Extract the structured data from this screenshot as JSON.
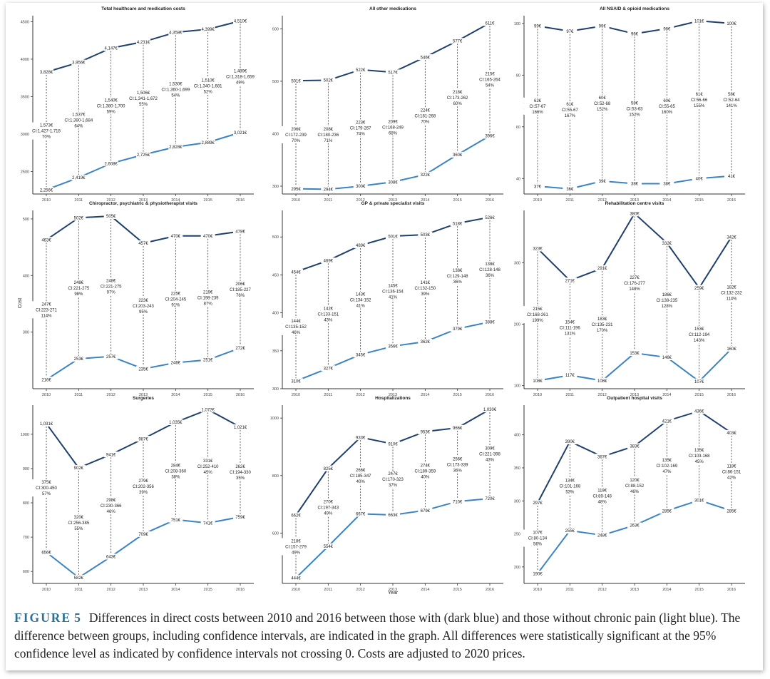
{
  "figure": {
    "label": "FIGURE",
    "number": "5",
    "caption": "Differences in direct costs between 2010 and 2016 between those with (dark blue) and those without chronic pain (light blue). The difference between groups, including confidence intervals, are indicated in the graph. All differences were statistically significant at the 95% confidence level as indicated by confidence intervals not crossing 0. Costs are adjusted to 2020 prices.",
    "y_axis_label": "Cost",
    "x_axis_label": "Year"
  },
  "colors": {
    "chronic": "#1f3f6e",
    "no_chronic": "#3a84c2",
    "axis": "#333333",
    "diff_line": "#333333"
  },
  "chart_data": [
    {
      "type": "line",
      "title": "Total healthcare and medication costs",
      "x": [
        "2010",
        "2011",
        "2012",
        "2013",
        "2014",
        "2015",
        "2016"
      ],
      "yticks": [
        2500,
        3000,
        3500,
        4000,
        4500
      ],
      "ylim": [
        2200,
        4580
      ],
      "series": [
        {
          "name": "With chronic pain",
          "values": [
            3828,
            3956,
            4147,
            4231,
            4358,
            4399,
            4510
          ],
          "labels": [
            "3,828€",
            "3,956€",
            "4,147€",
            "4,231€",
            "4,358€",
            "4,399€",
            "4,510€"
          ]
        },
        {
          "name": "Without chronic pain",
          "values": [
            2256,
            2419,
            2608,
            2725,
            2828,
            2889,
            3021
          ],
          "labels": [
            "2,256€",
            "2,419€",
            "2,608€",
            "2,725€",
            "2,828€",
            "2,889€",
            "3,021€"
          ]
        }
      ],
      "differences": [
        {
          "value": "1,573€",
          "ci": "CI:1,427-1,718",
          "pct": "70%"
        },
        {
          "value": "1,537€",
          "ci": "CI:1,390-1,684",
          "pct": "64%"
        },
        {
          "value": "1,540€",
          "ci": "CI:1,380-1,700",
          "pct": "59%"
        },
        {
          "value": "1,506€",
          "ci": "CI:1,341-1,672",
          "pct": "55%"
        },
        {
          "value": "1,530€",
          "ci": "CI:1,360-1,699",
          "pct": "54%"
        },
        {
          "value": "1,510€",
          "ci": "CI:1,340-1,681",
          "pct": "52%"
        },
        {
          "value": "1,489€",
          "ci": "CI:1,318-1,659",
          "pct": "49%"
        }
      ]
    },
    {
      "type": "line",
      "title": "All other medications",
      "x": [
        "2010",
        "2011",
        "2012",
        "2013",
        "2014",
        "2015",
        "2016"
      ],
      "yticks": [
        300,
        400,
        500,
        600
      ],
      "ylim": [
        285,
        625
      ],
      "series": [
        {
          "name": "With chronic pain",
          "values": [
            501,
            502,
            522,
            517,
            546,
            577,
            611
          ],
          "labels": [
            "501€",
            "502€",
            "522€",
            "517€",
            "546€",
            "577€",
            "611€"
          ]
        },
        {
          "name": "Without chronic pain",
          "values": [
            295,
            294,
            300,
            308,
            322,
            360,
            396
          ],
          "labels": [
            "295€",
            "294€",
            "300€",
            "308€",
            "322€",
            "360€",
            "396€"
          ]
        }
      ],
      "differences": [
        {
          "value": "206€",
          "ci": "CI:172-239",
          "pct": "70%"
        },
        {
          "value": "208€",
          "ci": "CI:180-236",
          "pct": "71%"
        },
        {
          "value": "223€",
          "ci": "CI:179-267",
          "pct": "74%"
        },
        {
          "value": "209€",
          "ci": "CI:168-249",
          "pct": "68%"
        },
        {
          "value": "224€",
          "ci": "CI:181-268",
          "pct": "70%"
        },
        {
          "value": "218€",
          "ci": "CI:173-262",
          "pct": "60%"
        },
        {
          "value": "215€",
          "ci": "CI:165-264",
          "pct": "54%"
        }
      ]
    },
    {
      "type": "line",
      "title": "All NSAID & opioid medications",
      "x": [
        "2010",
        "2011",
        "2012",
        "2013",
        "2014",
        "2015",
        "2016"
      ],
      "yticks": [
        40,
        60,
        80,
        100
      ],
      "ylim": [
        34,
        103
      ],
      "series": [
        {
          "name": "With chronic pain",
          "values": [
            99,
            97,
            99,
            96,
            98,
            101,
            100
          ],
          "labels": [
            "99€",
            "97€",
            "99€",
            "96€",
            "98€",
            "101€",
            "100€"
          ]
        },
        {
          "name": "Without chronic pain",
          "values": [
            37,
            36,
            39,
            38,
            38,
            40,
            41
          ],
          "labels": [
            "37€",
            "36€",
            "39€",
            "38€",
            "38€",
            "40€",
            "41€"
          ]
        }
      ],
      "differences": [
        {
          "value": "62€",
          "ci": "CI:57-67",
          "pct": "166%"
        },
        {
          "value": "61€",
          "ci": "CI:55-67",
          "pct": "167%"
        },
        {
          "value": "60€",
          "ci": "CI:52-68",
          "pct": "152%"
        },
        {
          "value": "58€",
          "ci": "CI:53-63",
          "pct": "152%"
        },
        {
          "value": "60€",
          "ci": "CI:55-65",
          "pct": "160%"
        },
        {
          "value": "61€",
          "ci": "CI:56-66",
          "pct": "155%"
        },
        {
          "value": "58€",
          "ci": "CI:52-64",
          "pct": "141%"
        }
      ]
    },
    {
      "type": "line",
      "title": "Chiropractor, psychiatric & physiotherapist visits",
      "x": [
        "2010",
        "2011",
        "2012",
        "2013",
        "2014",
        "2015",
        "2016"
      ],
      "yticks": [
        300,
        400,
        500
      ],
      "ylim": [
        200,
        515
      ],
      "series": [
        {
          "name": "With chronic pain",
          "values": [
            463,
            502,
            505,
            457,
            470,
            470,
            478
          ],
          "labels": [
            "463€",
            "502€",
            "505€",
            "457€",
            "470€",
            "470€",
            "478€"
          ]
        },
        {
          "name": "Without chronic pain",
          "values": [
            216,
            253,
            257,
            235,
            246,
            251,
            272
          ],
          "labels": [
            "216€",
            "253€",
            "257€",
            "235€",
            "246€",
            "251€",
            "272€"
          ]
        }
      ],
      "differences": [
        {
          "value": "247€",
          "ci": "CI:223-271",
          "pct": "114%"
        },
        {
          "value": "248€",
          "ci": "CI:221-275",
          "pct": "98%"
        },
        {
          "value": "248€",
          "ci": "CI:221-275",
          "pct": "97%"
        },
        {
          "value": "223€",
          "ci": "CI:203-243",
          "pct": "95%"
        },
        {
          "value": "225€",
          "ci": "CI:204-245",
          "pct": "91%"
        },
        {
          "value": "219€",
          "ci": "CI:198-239",
          "pct": "87%"
        },
        {
          "value": "206€",
          "ci": "CI:185-227",
          "pct": "76%"
        }
      ]
    },
    {
      "type": "line",
      "title": "GP & private specialist visits",
      "x": [
        "2010",
        "2011",
        "2012",
        "2013",
        "2014",
        "2015",
        "2016"
      ],
      "yticks": [
        300,
        350,
        400,
        450,
        500
      ],
      "ylim": [
        300,
        535
      ],
      "series": [
        {
          "name": "With chronic pain",
          "values": [
            454,
            469,
            489,
            501,
            503,
            518,
            526
          ],
          "labels": [
            "454€",
            "469€",
            "489€",
            "501€",
            "503€",
            "518€",
            "526€"
          ]
        },
        {
          "name": "Without chronic pain",
          "values": [
            310,
            327,
            345,
            356,
            362,
            379,
            388
          ],
          "labels": [
            "310€",
            "327€",
            "345€",
            "356€",
            "362€",
            "379€",
            "388€"
          ]
        }
      ],
      "differences": [
        {
          "value": "144€",
          "ci": "CI:135-152",
          "pct": "46%"
        },
        {
          "value": "142€",
          "ci": "CI:133-151",
          "pct": "43%"
        },
        {
          "value": "143€",
          "ci": "CI:134-152",
          "pct": "41%"
        },
        {
          "value": "145€",
          "ci": "CI:136-154",
          "pct": "41%"
        },
        {
          "value": "141€",
          "ci": "CI:132-150",
          "pct": "39%"
        },
        {
          "value": "138€",
          "ci": "CI:129-148",
          "pct": "36%"
        },
        {
          "value": "138€",
          "ci": "CI:128-148",
          "pct": "36%"
        }
      ]
    },
    {
      "type": "line",
      "title": "Rehabilitation centre visits",
      "x": [
        "2010",
        "2011",
        "2012",
        "2013",
        "2014",
        "2015",
        "2016"
      ],
      "yticks": [
        100,
        200,
        300
      ],
      "ylim": [
        95,
        385
      ],
      "series": [
        {
          "name": "With chronic pain",
          "values": [
            323,
            271,
            291,
            380,
            332,
            259,
            342
          ],
          "labels": [
            "323€",
            "271€",
            "291€",
            "380€",
            "332€",
            "259€",
            "342€"
          ]
        },
        {
          "name": "Without chronic pain",
          "values": [
            108,
            117,
            108,
            153,
            146,
            107,
            160
          ],
          "labels": [
            "108€",
            "117€",
            "108€",
            "153€",
            "146€",
            "107€",
            "160€"
          ]
        }
      ],
      "differences": [
        {
          "value": "215€",
          "ci": "CI:168-261",
          "pct": "199%"
        },
        {
          "value": "154€",
          "ci": "CI:111-196",
          "pct": "131%"
        },
        {
          "value": "183€",
          "ci": "CI:135-231",
          "pct": "170%"
        },
        {
          "value": "227€",
          "ci": "CI:176-277",
          "pct": "148%"
        },
        {
          "value": "186€",
          "ci": "CI:138-235",
          "pct": "128%"
        },
        {
          "value": "153€",
          "ci": "CI:112-194",
          "pct": "143%"
        },
        {
          "value": "182€",
          "ci": "CI:132-232",
          "pct": "114%"
        }
      ]
    },
    {
      "type": "line",
      "title": "Surgeries",
      "x": [
        "2010",
        "2011",
        "2012",
        "2013",
        "2014",
        "2015",
        "2016"
      ],
      "yticks": [
        600,
        700,
        800,
        900,
        1000
      ],
      "ylim": [
        565,
        1085
      ],
      "series": [
        {
          "name": "With chronic pain",
          "values": [
            1031,
            902,
            941,
            987,
            1035,
            1072,
            1021
          ],
          "labels": [
            "1,031€",
            "902€",
            "941€",
            "987€",
            "1,035€",
            "1,072€",
            "1,021€"
          ]
        },
        {
          "name": "Without chronic pain",
          "values": [
            656,
            582,
            643,
            709,
            751,
            741,
            759
          ],
          "labels": [
            "656€",
            "582€",
            "643€",
            "709€",
            "751€",
            "741€",
            "759€"
          ]
        }
      ],
      "differences": [
        {
          "value": "375€",
          "ci": "CI:300-450",
          "pct": "57%"
        },
        {
          "value": "320€",
          "ci": "CI:256-385",
          "pct": "55%"
        },
        {
          "value": "298€",
          "ci": "CI:230-366",
          "pct": "46%"
        },
        {
          "value": "279€",
          "ci": "CI:202-356",
          "pct": "39%"
        },
        {
          "value": "284€",
          "ci": "CI:208-360",
          "pct": "38%"
        },
        {
          "value": "331€",
          "ci": "CI:252-410",
          "pct": "45%"
        },
        {
          "value": "262€",
          "ci": "CI:194-330",
          "pct": "35%"
        }
      ]
    },
    {
      "type": "line",
      "title": "Hospitalizations",
      "x": [
        "2010",
        "2011",
        "2012",
        "2013",
        "2014",
        "2015",
        "2016"
      ],
      "yticks": [
        600,
        800,
        1000
      ],
      "ylim": [
        425,
        1045
      ],
      "series": [
        {
          "name": "With chronic pain",
          "values": [
            662,
            825,
            933,
            910,
            953,
            966,
            1030
          ],
          "labels": [
            "662€",
            "825€",
            "933€",
            "910€",
            "953€",
            "966€",
            "1,030€"
          ]
        },
        {
          "name": "Without chronic pain",
          "values": [
            444,
            554,
            667,
            663,
            679,
            710,
            720
          ],
          "labels": [
            "444€",
            "554€",
            "667€",
            "663€",
            "679€",
            "710€",
            "720€"
          ]
        }
      ],
      "differences": [
        {
          "value": "218€",
          "ci": "CI:157-279",
          "pct": "49%"
        },
        {
          "value": "270€",
          "ci": "CI:197-343",
          "pct": "49%"
        },
        {
          "value": "266€",
          "ci": "CI:185-347",
          "pct": "40%"
        },
        {
          "value": "247€",
          "ci": "CI:170-323",
          "pct": "37%"
        },
        {
          "value": "274€",
          "ci": "CI:189-359",
          "pct": "40%"
        },
        {
          "value": "256€",
          "ci": "CI:173-339",
          "pct": "36%"
        },
        {
          "value": "309€",
          "ci": "CI:221-398",
          "pct": "43%"
        }
      ]
    },
    {
      "type": "line",
      "title": "Outpatient hospital visits",
      "x": [
        "2010",
        "2011",
        "2012",
        "2013",
        "2014",
        "2015",
        "2016"
      ],
      "yticks": [
        200,
        250,
        300,
        350,
        400
      ],
      "ylim": [
        175,
        445
      ],
      "series": [
        {
          "name": "With chronic pain",
          "values": [
            297,
            390,
            367,
            383,
            421,
            436,
            403
          ],
          "labels": [
            "297€",
            "390€",
            "367€",
            "383€",
            "421€",
            "436€",
            "403€"
          ]
        },
        {
          "name": "Without chronic pain",
          "values": [
            190,
            255,
            248,
            263,
            285,
            301,
            285
          ],
          "labels": [
            "190€",
            "255€",
            "248€",
            "263€",
            "285€",
            "301€",
            "285€"
          ]
        }
      ],
      "differences": [
        {
          "value": "107€",
          "ci": "CI:80-134",
          "pct": "56%"
        },
        {
          "value": "134€",
          "ci": "CI:101-168",
          "pct": "53%"
        },
        {
          "value": "119€",
          "ci": "CI:89-148",
          "pct": "48%"
        },
        {
          "value": "120€",
          "ci": "CI:88-152",
          "pct": "46%"
        },
        {
          "value": "135€",
          "ci": "CI:102-169",
          "pct": "47%"
        },
        {
          "value": "135€",
          "ci": "CI:103-168",
          "pct": "45%"
        },
        {
          "value": "118€",
          "ci": "CI:86-151",
          "pct": "42%"
        }
      ]
    }
  ]
}
